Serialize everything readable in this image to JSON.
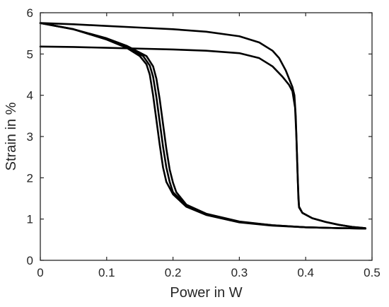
{
  "chart_data": {
    "type": "line",
    "title": "",
    "xlabel": "Power in W",
    "ylabel": "Strain in %",
    "xlim": [
      0,
      0.5
    ],
    "ylim": [
      0,
      6
    ],
    "xticks": [
      0,
      0.1,
      0.2,
      0.3,
      0.4,
      0.5
    ],
    "yticks": [
      0,
      1,
      2,
      3,
      4,
      5,
      6
    ],
    "xtick_labels": [
      "0",
      "0.1",
      "0.2",
      "0.3",
      "0.4",
      "0.5"
    ],
    "ytick_labels": [
      "0",
      "1",
      "2",
      "3",
      "4",
      "5",
      "6"
    ],
    "grid": false,
    "legend": "none",
    "line_color": "#000000",
    "series": [
      {
        "x": [
          0,
          0.05,
          0.1,
          0.15,
          0.2,
          0.25,
          0.3,
          0.33,
          0.35,
          0.36,
          0.37,
          0.375,
          0.38,
          0.383,
          0.385,
          0.386,
          0.387,
          0.388,
          0.389,
          0.39,
          0.395,
          0.41,
          0.43,
          0.45,
          0.47,
          0.49
        ],
        "y": [
          5.75,
          5.72,
          5.68,
          5.64,
          5.6,
          5.54,
          5.43,
          5.28,
          5.08,
          4.9,
          4.6,
          4.4,
          4.2,
          4.0,
          3.5,
          3.0,
          2.5,
          2.0,
          1.6,
          1.3,
          1.15,
          1.02,
          0.93,
          0.86,
          0.81,
          0.78
        ]
      },
      {
        "x": [
          0,
          0.05,
          0.1,
          0.15,
          0.2,
          0.25,
          0.3,
          0.33,
          0.35,
          0.365,
          0.375,
          0.38,
          0.384,
          0.386,
          0.387,
          0.388,
          0.389,
          0.39,
          0.395,
          0.41,
          0.43,
          0.45,
          0.47,
          0.49
        ],
        "y": [
          5.18,
          5.17,
          5.15,
          5.13,
          5.11,
          5.08,
          5.02,
          4.9,
          4.7,
          4.45,
          4.25,
          4.1,
          3.7,
          3.0,
          2.5,
          2.0,
          1.5,
          1.28,
          1.15,
          1.02,
          0.93,
          0.86,
          0.81,
          0.78
        ]
      },
      {
        "x": [
          0,
          0.05,
          0.1,
          0.13,
          0.15,
          0.16,
          0.165,
          0.17,
          0.175,
          0.18,
          0.185,
          0.19,
          0.2,
          0.22,
          0.25,
          0.3,
          0.35,
          0.4,
          0.45,
          0.49
        ],
        "y": [
          5.75,
          5.6,
          5.35,
          5.15,
          4.95,
          4.75,
          4.5,
          4.0,
          3.4,
          2.8,
          2.25,
          1.9,
          1.6,
          1.3,
          1.1,
          0.92,
          0.84,
          0.8,
          0.78,
          0.77
        ]
      },
      {
        "x": [
          0,
          0.05,
          0.1,
          0.13,
          0.155,
          0.165,
          0.17,
          0.175,
          0.18,
          0.185,
          0.19,
          0.195,
          0.2,
          0.22,
          0.25,
          0.3,
          0.35,
          0.4,
          0.45,
          0.49
        ],
        "y": [
          5.75,
          5.6,
          5.37,
          5.18,
          4.95,
          4.72,
          4.45,
          3.95,
          3.35,
          2.75,
          2.25,
          1.9,
          1.65,
          1.33,
          1.12,
          0.93,
          0.85,
          0.8,
          0.78,
          0.77
        ]
      },
      {
        "x": [
          0,
          0.05,
          0.1,
          0.13,
          0.16,
          0.17,
          0.175,
          0.18,
          0.185,
          0.19,
          0.195,
          0.2,
          0.205,
          0.22,
          0.25,
          0.3,
          0.35,
          0.4,
          0.45,
          0.49
        ],
        "y": [
          5.75,
          5.6,
          5.38,
          5.2,
          4.95,
          4.7,
          4.4,
          3.9,
          3.3,
          2.7,
          2.2,
          1.88,
          1.65,
          1.35,
          1.13,
          0.94,
          0.85,
          0.8,
          0.78,
          0.77
        ]
      }
    ]
  }
}
